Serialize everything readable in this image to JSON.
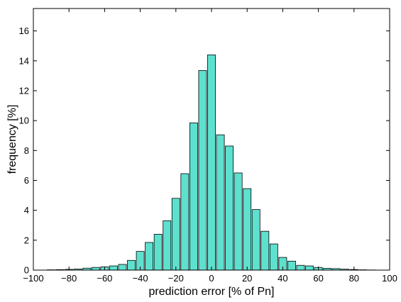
{
  "chart_data": {
    "type": "bar",
    "title": "",
    "xlabel": "prediction error [% of Pn]",
    "ylabel": "frequency [%]",
    "xlim": [
      -100,
      100
    ],
    "ylim": [
      0,
      17.5
    ],
    "xticks": [
      -100,
      -80,
      -60,
      -40,
      -20,
      0,
      20,
      40,
      60,
      80,
      100
    ],
    "xtick_labels": [
      "−100",
      "−80",
      "−60",
      "−40",
      "−20",
      "0",
      "20",
      "40",
      "60",
      "80",
      "100"
    ],
    "yticks": [
      0,
      2,
      4,
      6,
      8,
      10,
      12,
      14,
      16
    ],
    "ytick_labels": [
      "0",
      "2",
      "4",
      "6",
      "8",
      "10",
      "12",
      "14",
      "16"
    ],
    "bar_color": "#5ee0cf",
    "bar_edge_color": "#000000",
    "grid": false,
    "bin_width": 5,
    "x": [
      -90,
      -85,
      -80,
      -75,
      -70,
      -65,
      -60,
      -55,
      -50,
      -45,
      -40,
      -35,
      -30,
      -25,
      -20,
      -15,
      -10,
      -5,
      0,
      5,
      10,
      15,
      20,
      25,
      30,
      35,
      40,
      45,
      50,
      55,
      60,
      65,
      70,
      75,
      80,
      85,
      90,
      95
    ],
    "values": [
      0.02,
      0.03,
      0.05,
      0.07,
      0.13,
      0.18,
      0.22,
      0.28,
      0.38,
      0.65,
      1.25,
      1.85,
      2.4,
      3.3,
      4.8,
      6.45,
      9.85,
      13.35,
      14.4,
      9.05,
      8.3,
      6.5,
      5.45,
      4.05,
      2.6,
      1.75,
      0.85,
      0.6,
      0.32,
      0.28,
      0.18,
      0.12,
      0.1,
      0.06,
      0.04,
      0.02,
      0.01,
      0.0
    ]
  }
}
